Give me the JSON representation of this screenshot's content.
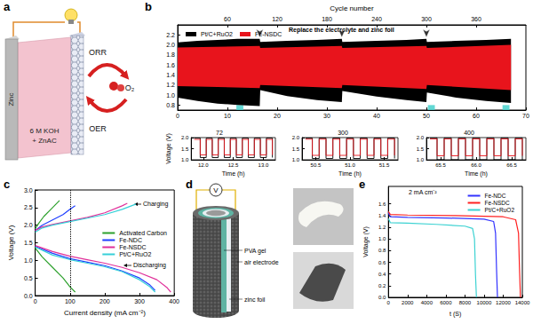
{
  "chart_data": [
    {
      "panel": "b",
      "type": "band",
      "x2_label": "Cycle number",
      "xlim": [
        0,
        70
      ],
      "xticks": [
        0,
        10,
        20,
        30,
        40,
        50,
        60,
        70
      ],
      "x2lim": [
        0,
        420
      ],
      "x2ticks": [
        60,
        120,
        180,
        240,
        300,
        360
      ],
      "ylim": [
        0.7,
        2.4
      ],
      "yticks": [
        0.8,
        {
          "value": 1,
          "label": "1.0"
        },
        1.2,
        1.4,
        1.6,
        1.8,
        {
          "value": 2,
          "label": "2.0"
        },
        2.2
      ],
      "grid": false,
      "legend": "upper left",
      "annotations": [
        "Replace the electrolyte and zinc foil"
      ],
      "arrows_x": [
        16.5,
        33,
        50
      ],
      "arrows_y": 2.15,
      "series": [
        {
          "name": "Pt/C+RuO2",
          "color": "#000000",
          "x": [
            0,
            4,
            8,
            12,
            16.5,
            16.6,
            22,
            28,
            33,
            33.1,
            40,
            46,
            50,
            50.1,
            56,
            62,
            67
          ],
          "upper": [
            2.05,
            2.08,
            2.1,
            2.12,
            2.12,
            2.06,
            2.08,
            2.1,
            2.12,
            2.06,
            2.08,
            2.1,
            2.12,
            2.06,
            2.08,
            2.1,
            2.12
          ],
          "lower": [
            0.95,
            0.88,
            0.83,
            0.8,
            0.78,
            1.1,
            0.98,
            0.9,
            0.86,
            1.08,
            0.97,
            0.9,
            0.86,
            1.05,
            0.95,
            0.88,
            0.84
          ]
        },
        {
          "name": "Fe-NSDC",
          "color": "#e8141c",
          "x": [
            0,
            16.5,
            16.6,
            33,
            33.1,
            50,
            50.1,
            67
          ],
          "upper": [
            1.95,
            1.98,
            1.94,
            1.98,
            1.94,
            1.98,
            1.94,
            2.0
          ],
          "lower": [
            1.18,
            1.14,
            1.2,
            1.14,
            1.2,
            1.12,
            1.2,
            1.1
          ]
        }
      ]
    },
    {
      "type": "line",
      "line_style": "step",
      "title": "72",
      "xlabel": "Time (h)",
      "ylabel": "Voltage (V)",
      "xlim": [
        11.8,
        13.2
      ],
      "xticks": [
        {
          "value": 12,
          "label": "12.0"
        },
        12.5,
        {
          "value": 13,
          "label": "13.0"
        }
      ],
      "ylim": [
        1,
        2
      ],
      "yticks": [
        {
          "value": 1,
          "label": "1.0"
        },
        1.5,
        {
          "value": 2,
          "label": "2.0"
        }
      ],
      "x": [
        11.85,
        11.95,
        12.05,
        12.15,
        12.25,
        12.35,
        12.45,
        12.55,
        12.65,
        12.75,
        12.85,
        12.95,
        13.05,
        13.15
      ],
      "series": [
        {
          "name": "Pt/C+RuO2",
          "color": "#000000",
          "values": [
            1.98,
            1.1,
            1.98,
            1.1,
            1.98,
            1.1,
            1.98,
            1.1,
            1.98,
            1.1,
            1.98,
            1.1,
            1.98,
            1.1
          ]
        },
        {
          "name": "Fe-NSDC",
          "color": "#e8141c",
          "values": [
            1.92,
            1.22,
            1.92,
            1.22,
            1.92,
            1.22,
            1.92,
            1.22,
            1.92,
            1.22,
            1.92,
            1.22,
            1.92,
            1.22
          ]
        }
      ]
    },
    {
      "type": "line",
      "line_style": "step",
      "title": "300",
      "xlabel": "Time (h)",
      "xlim": [
        50.3,
        51.7
      ],
      "xticks": [
        50.5,
        {
          "value": 51,
          "label": "51.0"
        },
        51.5
      ],
      "ylim": [
        1,
        2
      ],
      "yticks": [
        {
          "value": 1,
          "label": "1.0"
        },
        1.5,
        {
          "value": 2,
          "label": "2.0"
        }
      ],
      "x": [
        50.35,
        50.45,
        50.55,
        50.65,
        50.75,
        50.85,
        50.95,
        51.05,
        51.15,
        51.25,
        51.35,
        51.45,
        51.55,
        51.65
      ],
      "series": [
        {
          "name": "Pt/C+RuO2",
          "color": "#000000",
          "values": [
            1.98,
            1.06,
            1.98,
            1.06,
            1.98,
            1.06,
            1.98,
            1.06,
            1.98,
            1.06,
            1.98,
            1.06,
            1.98,
            1.06
          ]
        },
        {
          "name": "Fe-NSDC",
          "color": "#e8141c",
          "values": [
            1.93,
            1.2,
            1.93,
            1.2,
            1.93,
            1.2,
            1.93,
            1.2,
            1.93,
            1.2,
            1.93,
            1.2,
            1.93,
            1.2
          ]
        }
      ]
    },
    {
      "type": "line",
      "line_style": "step",
      "title": "400",
      "xlabel": "Time (h)",
      "xlim": [
        65.3,
        66.7
      ],
      "xticks": [
        65.5,
        {
          "value": 66,
          "label": "66.0"
        },
        66.5
      ],
      "ylim": [
        1,
        2
      ],
      "yticks": [
        {
          "value": 1,
          "label": "1.0"
        },
        1.5,
        {
          "value": 2,
          "label": "2.0"
        }
      ],
      "x": [
        65.35,
        65.45,
        65.55,
        65.65,
        65.75,
        65.85,
        65.95,
        66.05,
        66.15,
        66.25,
        66.35,
        66.45,
        66.55,
        66.65
      ],
      "series": [
        {
          "name": "Pt/C+RuO2",
          "color": "#000000",
          "values": [
            1.99,
            1.0,
            1.99,
            1.0,
            1.99,
            1.0,
            1.99,
            1.0,
            1.99,
            1.0,
            1.99,
            1.0,
            1.99,
            1.0
          ]
        },
        {
          "name": "Fe-NSDC",
          "color": "#e8141c",
          "values": [
            1.94,
            1.18,
            1.94,
            1.18,
            1.94,
            1.18,
            1.94,
            1.18,
            1.94,
            1.18,
            1.94,
            1.18,
            1.94,
            1.18
          ]
        }
      ]
    },
    {
      "panel": "c",
      "type": "line",
      "xlabel": "Current density (mA cm⁻²)",
      "ylabel": "Voltage (V)",
      "xlim": [
        0,
        400
      ],
      "xticks": [
        0,
        100,
        200,
        300,
        400
      ],
      "ylim": [
        0,
        3
      ],
      "yticks": [
        {
          "value": 0,
          "label": "0.0"
        },
        0.5,
        {
          "value": 1,
          "label": "1.0"
        },
        1.5,
        {
          "value": 2,
          "label": "2.0"
        },
        2.5,
        {
          "value": 3,
          "label": "3.0"
        }
      ],
      "vline": 100,
      "annotations": [
        "Charging",
        "Discharging"
      ],
      "legend": "right",
      "grid": false,
      "series": [
        {
          "name": "Activated Carbon",
          "color": "#2ca02c",
          "x": [
            0,
            10,
            25,
            45,
            60,
            70
          ],
          "values": [
            1.9,
            2.05,
            2.25,
            2.45,
            2.6,
            2.7
          ]
        },
        {
          "name": "Activated Carbon",
          "color": "#2ca02c",
          "x": [
            0,
            20,
            50,
            80,
            100,
            115
          ],
          "values": [
            1.35,
            1.1,
            0.8,
            0.5,
            0.25,
            0.1
          ]
        },
        {
          "name": "Fe-NDC",
          "color": "#1f3fff",
          "x": [
            0,
            20,
            50,
            80,
            100,
            115
          ],
          "values": [
            1.85,
            2.0,
            2.15,
            2.3,
            2.45,
            2.55
          ]
        },
        {
          "name": "Fe-NDC",
          "color": "#1f3fff",
          "x": [
            0,
            50,
            100,
            150,
            200,
            250,
            300,
            330,
            345
          ],
          "values": [
            1.4,
            1.2,
            1.05,
            0.95,
            0.85,
            0.7,
            0.5,
            0.3,
            0.15
          ]
        },
        {
          "name": "Fe-NSDC",
          "color": "#e0309a",
          "x": [
            0,
            20,
            50,
            100,
            150,
            200,
            250,
            265
          ],
          "values": [
            1.85,
            1.95,
            2.02,
            2.12,
            2.22,
            2.35,
            2.55,
            2.62
          ]
        },
        {
          "name": "Fe-NSDC",
          "color": "#e0309a",
          "x": [
            0,
            50,
            100,
            150,
            200,
            250,
            300,
            350,
            380,
            390
          ],
          "values": [
            1.42,
            1.25,
            1.12,
            1.02,
            0.92,
            0.8,
            0.65,
            0.45,
            0.22,
            0.1
          ]
        },
        {
          "name": "Pt/C+RuO2",
          "color": "#36d0d8",
          "x": [
            0,
            20,
            50,
            100,
            150,
            200,
            250,
            290
          ],
          "values": [
            1.8,
            1.92,
            2.0,
            2.1,
            2.2,
            2.3,
            2.45,
            2.6
          ]
        },
        {
          "name": "Pt/C+RuO2",
          "color": "#36d0d8",
          "x": [
            0,
            50,
            100,
            150,
            200,
            250,
            300,
            330,
            345
          ],
          "values": [
            1.38,
            1.15,
            1.02,
            0.92,
            0.82,
            0.68,
            0.45,
            0.25,
            0.1
          ]
        }
      ]
    },
    {
      "panel": "e",
      "type": "line",
      "xlabel": "t (S)",
      "ylabel": "Voltage (V)",
      "annotations": [
        "2 mA cm⁻²"
      ],
      "xlim": [
        0,
        14000
      ],
      "xticks": [
        0,
        2000,
        4000,
        6000,
        8000,
        10000,
        12000,
        14000
      ],
      "ylim": [
        0,
        1.9
      ],
      "yticks": [
        {
          "value": 0,
          "label": "0.0"
        },
        0.2,
        0.4,
        0.6,
        0.8,
        {
          "value": 1,
          "label": "1.0"
        },
        1.2,
        1.4,
        1.6
      ],
      "legend": "upper right",
      "grid": false,
      "series": [
        {
          "name": "Fe-NDC",
          "color": "#3333ff",
          "x": [
            0,
            200,
            2000,
            6000,
            10000,
            11000,
            11200,
            11300,
            11400
          ],
          "values": [
            1.45,
            1.38,
            1.37,
            1.36,
            1.34,
            1.3,
            1.1,
            0.5,
            0
          ]
        },
        {
          "name": "Fe-NSDC",
          "color": "#ff2020",
          "x": [
            0,
            200,
            2000,
            7000,
            12000,
            13300,
            13600,
            13700,
            13800
          ],
          "values": [
            1.47,
            1.42,
            1.41,
            1.4,
            1.38,
            1.33,
            1.1,
            0.5,
            0
          ]
        },
        {
          "name": "Pt/C+RuO2",
          "color": "#3cd2d2",
          "x": [
            0,
            200,
            2000,
            5000,
            8000,
            8800,
            9000,
            9100,
            9200
          ],
          "values": [
            1.35,
            1.28,
            1.27,
            1.25,
            1.22,
            1.18,
            1.0,
            0.4,
            0
          ]
        }
      ]
    }
  ],
  "diagrams": {
    "a": {
      "panel": "a",
      "electrode": "Zinc",
      "electrolyte": [
        "6 M KOH",
        "+ ZnAC"
      ],
      "reactions": [
        "ORR",
        "OER"
      ],
      "gas": "O₂"
    },
    "d": {
      "panel": "d",
      "meter": "V",
      "labels": [
        "PVA gel",
        "air electrode",
        "zinc foil"
      ]
    }
  }
}
